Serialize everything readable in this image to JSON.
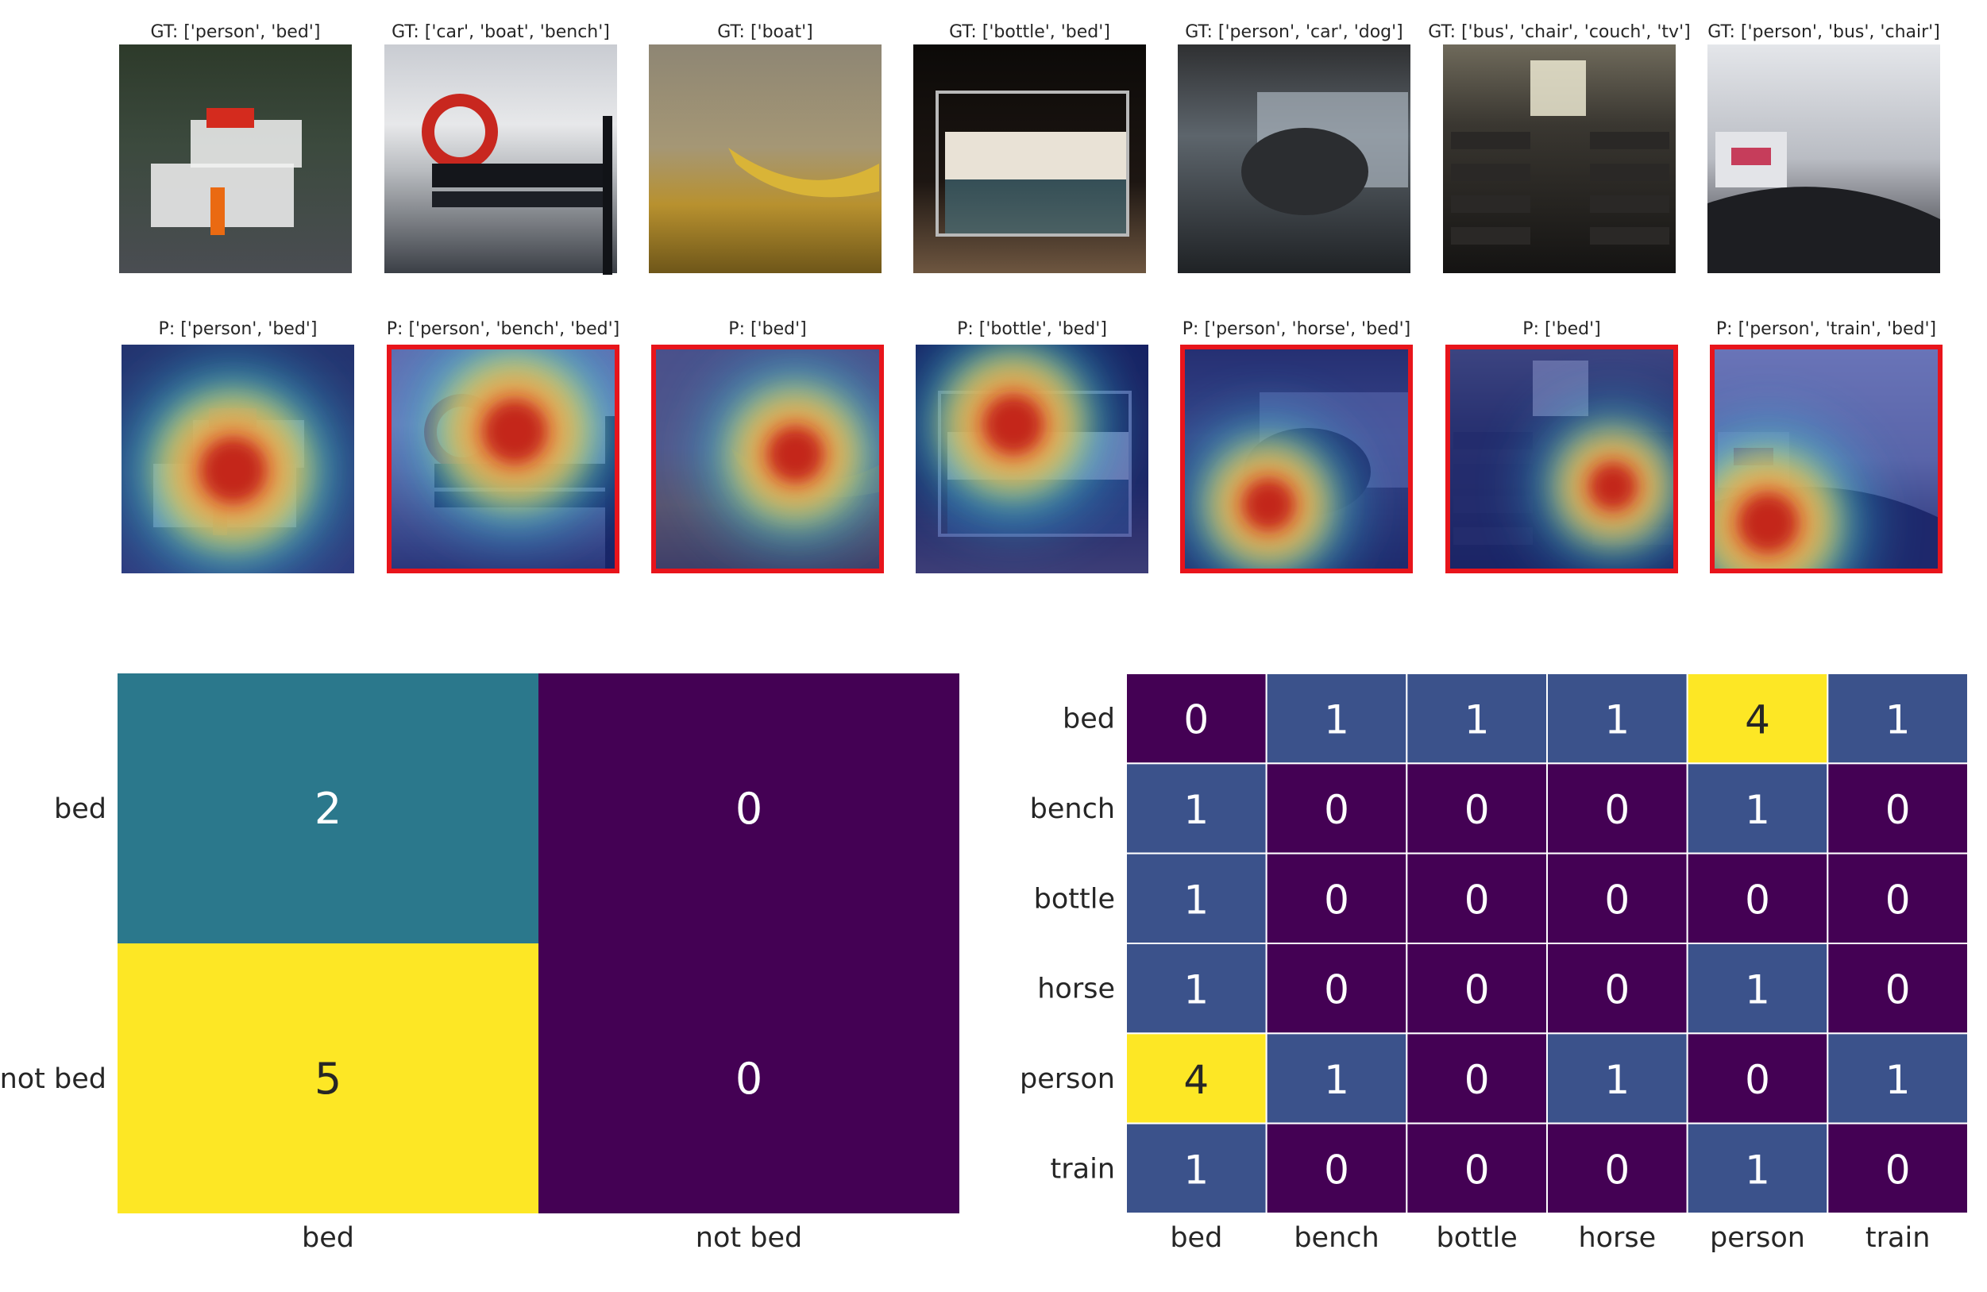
{
  "colors": {
    "heat_low": "#440154",
    "heat_mid_low": "#3b528b",
    "heat_mid": "#2a788e",
    "heat_high": "#fde725",
    "misprediction_border": "#e8141b",
    "label_on_dark": "#ffffff",
    "label_on_light": "#262626"
  },
  "chart_data": [
    {
      "type": "image_grid",
      "rows": [
        {
          "kind": "ground_truth",
          "titles": [
            "GT: ['person', 'bed']",
            "GT: ['car', 'boat', 'bench']",
            "GT: ['boat']",
            "GT: ['bottle', 'bed']",
            "GT: ['person', 'car', 'dog']",
            "GT: ['bus', 'chair', 'couch', 'tv']",
            "GT: ['person', 'bus', 'chair']"
          ]
        },
        {
          "kind": "prediction_heatmap",
          "titles": [
            "P: ['person', 'bed']",
            "P: ['person', 'bench', 'bed']",
            "P: ['bed']",
            "P: ['bottle', 'bed']",
            "P: ['person', 'horse', 'bed']",
            "P: ['bed']",
            "P: ['person', 'train', 'bed']"
          ],
          "highlighted": [
            false,
            true,
            true,
            false,
            true,
            true,
            true
          ]
        }
      ]
    },
    {
      "type": "heatmap",
      "x_categories": [
        "bed",
        "not bed"
      ],
      "y_categories": [
        "bed",
        "not bed"
      ],
      "values": [
        [
          2,
          0
        ],
        [
          5,
          0
        ]
      ],
      "vmin": 0,
      "vmax": 5
    },
    {
      "type": "heatmap",
      "x_categories": [
        "bed",
        "bench",
        "bottle",
        "horse",
        "person",
        "train"
      ],
      "y_categories": [
        "bed",
        "bench",
        "bottle",
        "horse",
        "person",
        "train"
      ],
      "values": [
        [
          0,
          1,
          1,
          1,
          4,
          1
        ],
        [
          1,
          0,
          0,
          0,
          1,
          0
        ],
        [
          1,
          0,
          0,
          0,
          0,
          0
        ],
        [
          1,
          0,
          0,
          0,
          1,
          0
        ],
        [
          4,
          1,
          0,
          1,
          0,
          1
        ],
        [
          1,
          0,
          0,
          0,
          1,
          0
        ]
      ],
      "vmin": 0,
      "vmax": 4,
      "grid_lines": true
    }
  ]
}
